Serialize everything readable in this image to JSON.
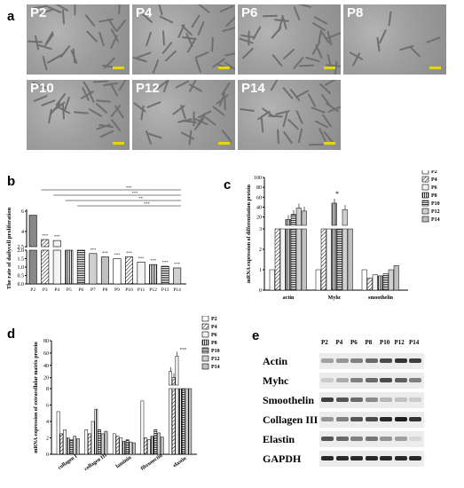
{
  "panels": {
    "a": {
      "letter": "a",
      "tiles": [
        "P2",
        "P4",
        "P6",
        "P8",
        "P10",
        "P12",
        "P14"
      ]
    },
    "b": {
      "letter": "b"
    },
    "c": {
      "letter": "c"
    },
    "d": {
      "letter": "d"
    },
    "e": {
      "letter": "e",
      "lanes": [
        "P2",
        "P4",
        "P6",
        "P8",
        "P10",
        "P12",
        "P14"
      ],
      "rows": [
        "Actin",
        "Myhc",
        "Smoothelin",
        "Collagen III",
        "Elastin",
        "GAPDH"
      ]
    }
  },
  "chart_data": [
    {
      "id": "b",
      "type": "bar",
      "ylabel": "The rate of dailycell proliferation",
      "categories": [
        "P2",
        "P3",
        "P4",
        "P5",
        "P6",
        "P7",
        "P8",
        "P9",
        "P10",
        "P11",
        "P12",
        "P13",
        "P14"
      ],
      "values": [
        5.6,
        3.2,
        3.1,
        2.0,
        2.0,
        1.8,
        1.6,
        1.5,
        1.6,
        1.3,
        1.15,
        1.05,
        0.95
      ],
      "errors": [
        0.15,
        0.1,
        0.08,
        0.0,
        0.0,
        0.05,
        0.05,
        0.05,
        0.05,
        0.04,
        0.04,
        0.04,
        0.04
      ],
      "yticks_upper": [
        "6",
        "4",
        "2.5"
      ],
      "yticks_lower": [
        "2.0",
        "1.5",
        "1.0",
        "0.5",
        "0.0"
      ],
      "sig": [
        "",
        "***",
        "***",
        "",
        "",
        "***",
        "***",
        "***",
        "***",
        "***",
        "***",
        "***",
        "***"
      ],
      "brackets": [
        "***",
        "***",
        "**",
        "***"
      ]
    },
    {
      "id": "c",
      "type": "bar",
      "ylabel": "mRNA expression of differentiation protein",
      "categories": [
        "actin",
        "Myhc",
        "smoothelin"
      ],
      "series_names": [
        "P2",
        "P4",
        "P6",
        "P8",
        "P10",
        "P12",
        "P14"
      ],
      "values": [
        [
          1,
          3,
          3,
          15,
          25,
          38,
          32
        ],
        [
          1,
          3,
          3,
          48,
          3,
          35,
          3
        ],
        [
          1,
          0.6,
          0.75,
          0.7,
          0.8,
          1.0,
          1.2
        ]
      ],
      "yticks_upper": [
        "100",
        "80",
        "60",
        "40",
        "20"
      ],
      "yticks_lower": [
        "3",
        "2",
        "1",
        "0"
      ],
      "annotation": "*"
    },
    {
      "id": "d",
      "type": "bar",
      "ylabel": "mRNA expression of extracellular matrix protein",
      "categories": [
        "collagen I",
        "collagen III",
        "laminin",
        "fibronectin",
        "elastin"
      ],
      "series_names": [
        "P2",
        "P4",
        "P6",
        "P8",
        "P10",
        "P12",
        "P14"
      ],
      "yticks_upper": [
        "80",
        "60",
        "40",
        "20"
      ],
      "yticks_lower": [
        "8",
        "6",
        "4",
        "2",
        "0"
      ],
      "annotation": "***"
    }
  ]
}
